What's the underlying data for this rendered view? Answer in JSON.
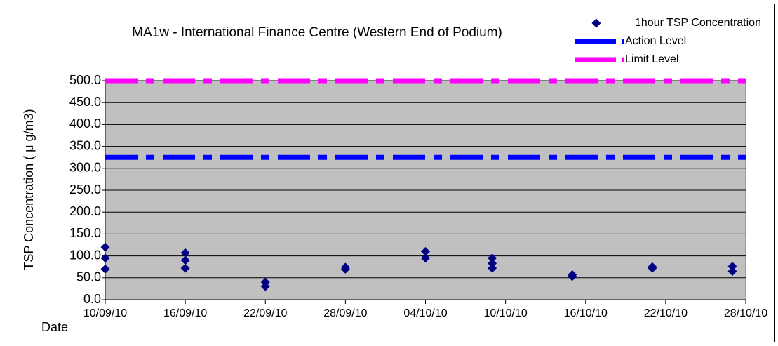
{
  "chart_data": {
    "type": "scatter",
    "title": "MA1w - International Finance Centre (Western End of Podium)",
    "x_label": "Date",
    "y_label": "TSP Concentration ( μ g/m3)",
    "xlim": [
      "10/09/10",
      "28/10/10"
    ],
    "xticks": [
      "10/09/10",
      "16/09/10",
      "22/09/10",
      "28/09/10",
      "04/10/10",
      "10/10/10",
      "16/10/10",
      "22/10/10",
      "28/10/10"
    ],
    "ylim": [
      0,
      500
    ],
    "yticks": [
      {
        "value": 0,
        "label": "0.0"
      },
      {
        "value": 50,
        "label": "50.0"
      },
      {
        "value": 100,
        "label": "100.0"
      },
      {
        "value": 150,
        "label": "150.0"
      },
      {
        "value": 200,
        "label": "200.0"
      },
      {
        "value": 250,
        "label": "250.0"
      },
      {
        "value": 300,
        "label": "300.0"
      },
      {
        "value": 350,
        "label": "350.0"
      },
      {
        "value": 400,
        "label": "400.0"
      },
      {
        "value": 450,
        "label": "450.0"
      },
      {
        "value": 500,
        "label": "500.0"
      }
    ],
    "grid": true,
    "legend": "top-right",
    "series": [
      {
        "name": "1hour TSP Concentration",
        "color": "#000080",
        "marker": "diamond",
        "x": [
          "10/09/10",
          "10/09/10",
          "10/09/10",
          "16/09/10",
          "16/09/10",
          "16/09/10",
          "22/09/10",
          "22/09/10",
          "28/09/10",
          "28/09/10",
          "04/10/10",
          "04/10/10",
          "09/10/10",
          "09/10/10",
          "09/10/10",
          "15/10/10",
          "15/10/10",
          "21/10/10",
          "21/10/10",
          "27/10/10",
          "27/10/10"
        ],
        "values": [
          120,
          95,
          70,
          107,
          90,
          72,
          40,
          30,
          74,
          70,
          110,
          95,
          95,
          83,
          72,
          57,
          53,
          75,
          72,
          76,
          65
        ]
      },
      {
        "name": "Action Level",
        "color": "#0000ff",
        "marker": "dashed-line",
        "values": [
          325
        ]
      },
      {
        "name": "Limit Level",
        "color": "#ff00ff",
        "marker": "dashed-line",
        "values": [
          500
        ]
      }
    ]
  }
}
